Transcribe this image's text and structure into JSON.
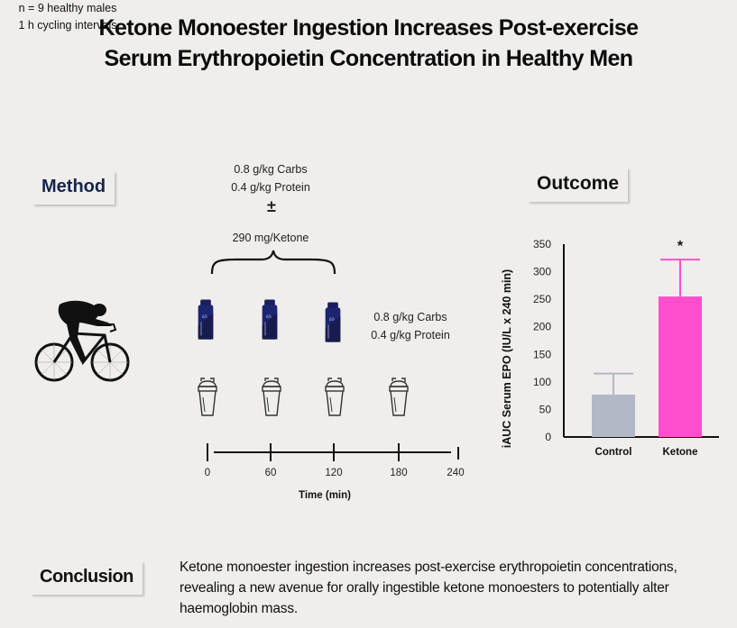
{
  "title": {
    "line1": "Ketone Monoester Ingestion Increases Post-exercise",
    "line2": "Serum Erythropoietin Concentration in Healthy Men"
  },
  "method": {
    "label": "Method",
    "participants_line1": "n = 9 healthy males",
    "participants_line2": "1 h cycling intervals",
    "supplement_top_line1": "0.8 g/kg Carbs",
    "supplement_top_line2": "0.4 g/kg Protein",
    "plus_minus": "±",
    "ketone_dose": "290 mg/Ketone",
    "supplement_right_line1": "0.8 g/kg Carbs",
    "supplement_right_line2": "0.4 g/kg Protein",
    "icons": [
      "cyclist-icon",
      "ketone-bottle-icon",
      "shaker-bottle-icon",
      "curly-brace"
    ],
    "bottle_timepoints": [
      0,
      60,
      120
    ],
    "shaker_timepoints": [
      0,
      60,
      120,
      180
    ],
    "timeline": {
      "ticks": [
        "0",
        "60",
        "120",
        "180",
        "240"
      ],
      "axis_label": "Time (min)"
    }
  },
  "outcome": {
    "label": "Outcome"
  },
  "chart_data": {
    "type": "bar",
    "title": "",
    "categories": [
      "Control",
      "Ketone"
    ],
    "values": [
      77,
      255
    ],
    "error_upper": [
      115,
      322
    ],
    "colors": [
      "#b3b8c6",
      "#ff4fce"
    ],
    "significance": [
      "",
      "*"
    ],
    "xlabel": "",
    "ylabel": "iAUC Serum EPO (IU/L x 240 min)",
    "ylim": [
      0,
      350
    ],
    "yticks": [
      0,
      50,
      100,
      150,
      200,
      250,
      300,
      350
    ],
    "grid": false,
    "legend": "none"
  },
  "conclusion": {
    "label": "Conclusion",
    "text": "Ketone monoester ingestion increases post-exercise erythropoietin concentrations, revealing a new avenue for orally ingestible ketone monoesters to potentially alter haemoglobin mass."
  }
}
